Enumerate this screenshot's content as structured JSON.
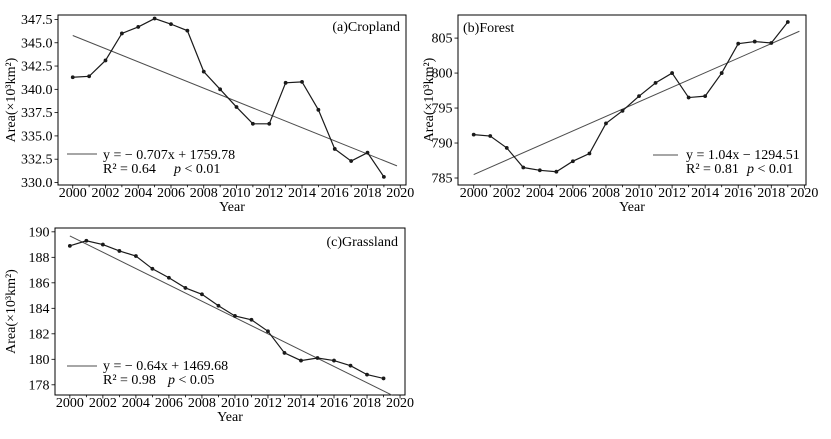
{
  "figure": {
    "background": "#ffffff",
    "axis_color": "#000000",
    "series_color": "#1a1a1a",
    "trend_color": "#4d4d4d"
  },
  "chart_data": [
    {
      "type": "line",
      "panel_label": "(a)Cropland",
      "xlabel": "Year",
      "ylabel": "Area(×10³km²)",
      "x": [
        2000,
        2001,
        2002,
        2003,
        2004,
        2005,
        2006,
        2007,
        2008,
        2009,
        2010,
        2011,
        2012,
        2013,
        2014,
        2015,
        2016,
        2017,
        2018,
        2019
      ],
      "values": [
        341.3,
        341.4,
        343.1,
        346.0,
        346.7,
        347.6,
        347.0,
        346.3,
        341.9,
        340.0,
        338.1,
        336.3,
        336.3,
        340.7,
        340.8,
        337.8,
        333.6,
        332.3,
        333.2,
        330.6
      ],
      "trend": {
        "slope": -0.707,
        "intercept": 1759.78,
        "x_start": 2000,
        "x_end": 2019.8,
        "equation_label": "y = − 0.707x + 1759.78",
        "r2_label": "R² = 0.64",
        "p_label": "p < 0.01"
      },
      "xlim": [
        1999.1,
        2020.35
      ],
      "ylim": [
        329.73,
        347.98
      ],
      "xticks": [
        2000,
        2002,
        2004,
        2006,
        2008,
        2010,
        2012,
        2014,
        2016,
        2018,
        2020
      ],
      "xtick_labels": [
        "2000",
        "2002",
        "2004",
        "2006",
        "2008",
        "2010",
        "2012",
        "2014",
        "2016",
        "2018",
        "2020"
      ],
      "yticks": [
        330.0,
        332.5,
        335.0,
        337.5,
        340.0,
        342.5,
        345.0,
        347.5
      ],
      "ytick_labels": [
        "330.0",
        "332.5",
        "335.0",
        "337.5",
        "340.0",
        "342.5",
        "345.0",
        "347.5"
      ],
      "legend_position": "bottom-left",
      "grid": false
    },
    {
      "type": "line",
      "panel_label": "(b)Forest",
      "xlabel": "Year",
      "ylabel": "Area(×10³km²)",
      "x": [
        2000,
        2001,
        2002,
        2003,
        2004,
        2005,
        2006,
        2007,
        2008,
        2009,
        2010,
        2011,
        2012,
        2013,
        2014,
        2015,
        2016,
        2017,
        2018,
        2019
      ],
      "values": [
        791.2,
        791.0,
        789.3,
        786.5,
        786.1,
        785.9,
        787.4,
        788.5,
        792.8,
        794.6,
        796.7,
        798.6,
        800.0,
        796.5,
        796.7,
        800.0,
        804.2,
        804.5,
        804.3,
        807.3
      ],
      "trend": {
        "slope": 1.04,
        "intercept": -1294.51,
        "x_start": 2000,
        "x_end": 2019.7,
        "equation_label": "y = 1.04x − 1294.51",
        "r2_label": "R² = 0.81",
        "p_label": "p < 0.01"
      },
      "xlim": [
        1999.05,
        2020.1
      ],
      "ylim": [
        784.0,
        808.3
      ],
      "xticks": [
        2000,
        2002,
        2004,
        2006,
        2008,
        2010,
        2012,
        2014,
        2016,
        2018,
        2020
      ],
      "xtick_labels": [
        "2000",
        "2002",
        "2004",
        "2006",
        "2008",
        "2010",
        "2012",
        "2014",
        "2016",
        "2018",
        "2020"
      ],
      "yticks": [
        785,
        790,
        795,
        800,
        805
      ],
      "ytick_labels": [
        "785",
        "790",
        "795",
        "800",
        "805"
      ],
      "legend_position": "bottom-right",
      "grid": false
    },
    {
      "type": "line",
      "panel_label": "(c)Grassland",
      "xlabel": "Year",
      "ylabel": "Area(×10³km²)",
      "x": [
        2000,
        2001,
        2002,
        2003,
        2004,
        2005,
        2006,
        2007,
        2008,
        2009,
        2010,
        2011,
        2012,
        2013,
        2014,
        2015,
        2016,
        2017,
        2018,
        2019
      ],
      "values": [
        188.9,
        189.3,
        189.0,
        188.5,
        188.1,
        187.1,
        186.4,
        185.6,
        185.1,
        184.2,
        183.4,
        183.1,
        182.2,
        180.5,
        179.9,
        180.1,
        179.9,
        179.5,
        178.8,
        178.5
      ],
      "trend": {
        "slope": -0.64,
        "intercept": 1469.68,
        "x_start": 2000,
        "x_end": 2019.55,
        "equation_label": "y = − 0.64x + 1469.68",
        "r2_label": "R² = 0.98",
        "p_label": "p < 0.05"
      },
      "xlim": [
        1999.1,
        2020.3
      ],
      "ylim": [
        177.2,
        190.3
      ],
      "xticks": [
        2000,
        2002,
        2004,
        2006,
        2008,
        2010,
        2012,
        2014,
        2016,
        2018,
        2020
      ],
      "xtick_labels": [
        "2000",
        "2002",
        "2004",
        "2006",
        "2008",
        "2010",
        "2012",
        "2014",
        "2016",
        "2018",
        "2020"
      ],
      "yticks": [
        178,
        180,
        182,
        184,
        186,
        188,
        190
      ],
      "ytick_labels": [
        "178",
        "180",
        "182",
        "184",
        "186",
        "188",
        "190"
      ],
      "legend_position": "bottom-left",
      "grid": false
    }
  ]
}
